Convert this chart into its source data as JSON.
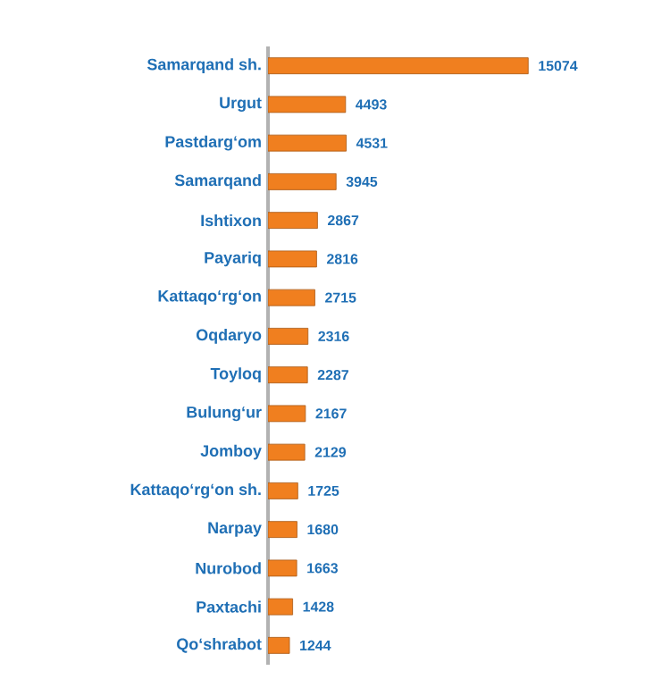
{
  "chart_data": {
    "type": "bar",
    "orientation": "horizontal",
    "categories": [
      "Samarqand sh.",
      "Urgut",
      "Pastdarg‘om",
      "Samarqand",
      "Ishtixon",
      "Payariq",
      "Kattaqo‘rg‘on",
      "Oqdaryo",
      "Toyloq",
      "Bulung‘ur",
      "Jomboy",
      "Kattaqo‘rg‘on sh.",
      "Narpay",
      "Nurobod",
      "Paxtachi",
      "Qo‘shrabot"
    ],
    "values": [
      15074,
      4493,
      4531,
      3945,
      2867,
      2816,
      2715,
      2316,
      2287,
      2167,
      2129,
      1725,
      1680,
      1663,
      1428,
      1244
    ],
    "color": "#f07f1f",
    "tick_labels": "y",
    "data_labels": true
  }
}
